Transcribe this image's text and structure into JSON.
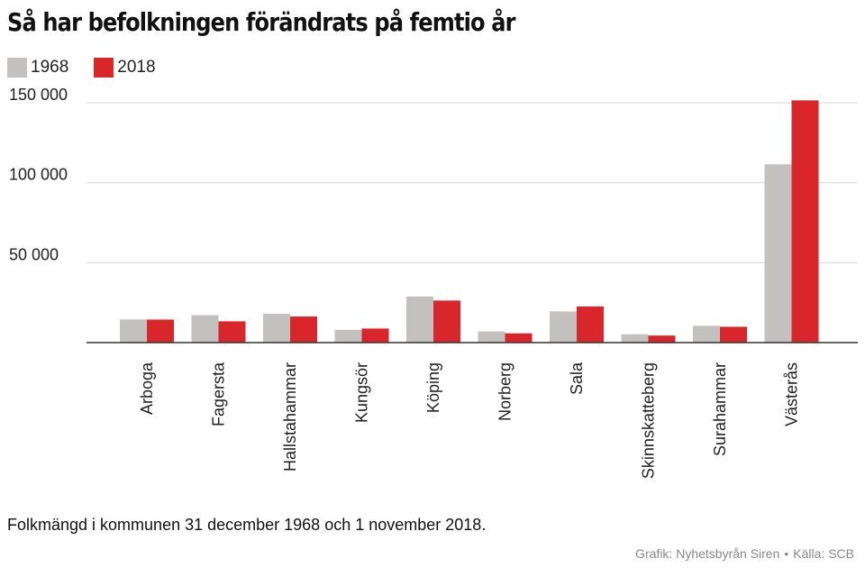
{
  "header": {
    "title": "Så har befolkningen förändrats på femtio år"
  },
  "legend": [
    {
      "label": "1968",
      "color": "#c2c1c0"
    },
    {
      "label": "2018",
      "color": "#d9262b"
    }
  ],
  "footer": {
    "caption": "Folkmängd i kommunen 31 december 1968 och 1 november 2018.",
    "credit_grafik": "Grafik: Nyhetsbyrån Siren",
    "credit_separator": "•",
    "credit_kalla": "Källa: SCB"
  },
  "chart_data": {
    "type": "bar",
    "title": "Så har befolkningen förändrats på femtio år",
    "categories": [
      "Arboga",
      "Fagersta",
      "Hallstahammar",
      "Kungsör",
      "Köping",
      "Norberg",
      "Sala",
      "Skinnskatteberg",
      "Surahammar",
      "Västerås"
    ],
    "series": [
      {
        "name": "1968",
        "color": "#c2c1c0",
        "values": [
          14500,
          17200,
          18000,
          8000,
          28800,
          7000,
          19500,
          5200,
          10500,
          111500
        ]
      },
      {
        "name": "2018",
        "color": "#d9262b",
        "values": [
          14400,
          13300,
          16300,
          8800,
          26300,
          5800,
          22600,
          4400,
          9900,
          151500
        ]
      }
    ],
    "yticks": [
      {
        "value": 50000,
        "label": "50 000"
      },
      {
        "value": 100000,
        "label": "100 000"
      },
      {
        "value": 150000,
        "label": "150 000"
      }
    ],
    "ylim": [
      0,
      150000
    ],
    "grid": true,
    "legend_position": "top-left"
  }
}
